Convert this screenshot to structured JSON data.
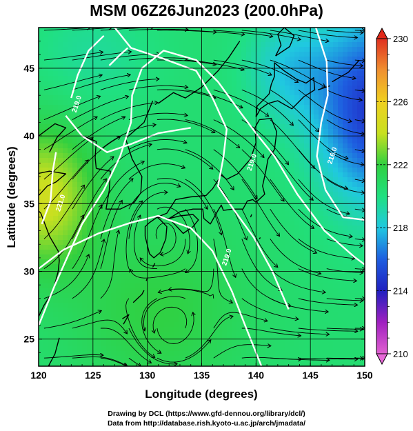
{
  "title": "MSM 06Z26Jun2023 (200.0hPa)",
  "map": {
    "xlabel": "Longitude (degrees)",
    "ylabel": "Latitude  (degrees)",
    "lon_range": [
      120,
      150
    ],
    "lat_range": [
      23,
      48
    ],
    "lon_ticks": [
      "120",
      "125",
      "130",
      "135",
      "140",
      "145",
      "150"
    ],
    "lat_ticks": [
      "25",
      "30",
      "35",
      "40",
      "45"
    ],
    "grid": true,
    "fields": "temperature shading with streamlines and contours",
    "contour_labels": [
      {
        "text": "219.0",
        "lon": 123.7,
        "lat": 42.3
      },
      {
        "text": "221.0",
        "lon": 122.2,
        "lat": 35.0
      },
      {
        "text": "219.0",
        "lon": 137.5,
        "lat": 31.0
      },
      {
        "text": "219.0",
        "lon": 139.8,
        "lat": 38.0
      },
      {
        "text": "216.0",
        "lon": 147.2,
        "lat": 38.5
      }
    ],
    "highlight_label_color": "#ffffff"
  },
  "colorbar": {
    "ticks": [
      "230",
      "226",
      "222",
      "218",
      "214",
      "210"
    ],
    "range": [
      210,
      230
    ],
    "stops": [
      "#e060d0",
      "#a020c0",
      "#2020c0",
      "#1e5ee0",
      "#20c8e0",
      "#20e080",
      "#30d040",
      "#c8e020",
      "#f0d020",
      "#f09030",
      "#e03020"
    ]
  },
  "credits": [
    "Drawing by DCL (https://www.gfd-dennou.org/library/dcl/)",
    "Data from http://database.rish.kyoto-u.ac.jp/arch/jmadata/"
  ]
}
